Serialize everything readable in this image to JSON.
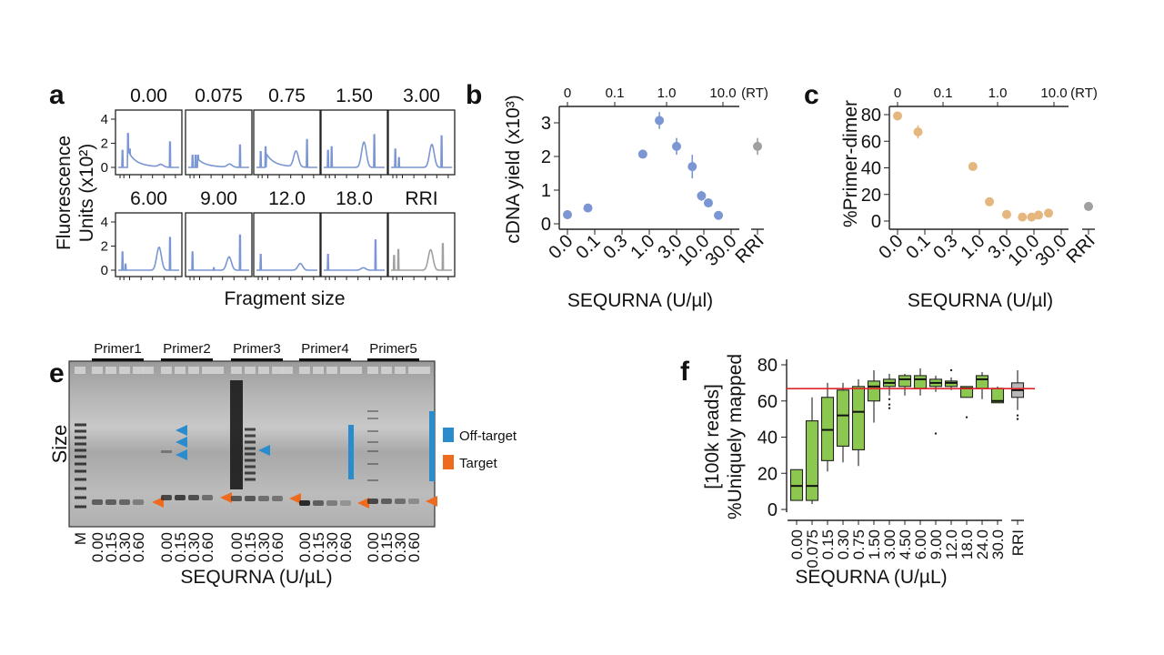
{
  "panels": {
    "a": "a",
    "b": "b",
    "c": "c",
    "e": "e",
    "f": "f"
  },
  "colors": {
    "blue_series": "#7b96d2",
    "orange_series": "#e5b77f",
    "rri_grey": "#a0a0a0",
    "box_green": "#8cc850",
    "ref_line_red": "#e0262b",
    "off_target": "#2a8ccc",
    "target": "#ee6a1e"
  },
  "chart_data": [
    {
      "id": "a",
      "type": "line",
      "ylabel_line1": "Fluorescence",
      "ylabel_line2": "Units (x10²)",
      "xlabel": "Fragment size",
      "yticks": [
        "0",
        "2",
        "4"
      ],
      "ylim": [
        0,
        4
      ],
      "panels": [
        {
          "title": "0.00",
          "color": "#7b96d2",
          "spikes": [
            [
              7,
              1.4
            ],
            [
              16,
              2.8
            ],
            [
              19,
              1.5
            ],
            [
              85,
              2.1
            ]
          ],
          "decay": 1.2,
          "hump": [
            70,
            0.2
          ]
        },
        {
          "title": "0.075",
          "color": "#7b96d2",
          "spikes": [
            [
              7,
              1.0
            ],
            [
              12,
              1.0
            ],
            [
              16,
              1.0
            ],
            [
              85,
              1.85
            ]
          ],
          "decay": 0.6,
          "hump": [
            68,
            0.25
          ]
        },
        {
          "title": "0.75",
          "color": "#7b96d2",
          "spikes": [
            [
              7,
              1.3
            ],
            [
              15,
              1.7
            ],
            [
              83,
              2.3
            ]
          ],
          "decay": 1.0,
          "hump": [
            65,
            1.3
          ]
        },
        {
          "title": "1.50",
          "color": "#7b96d2",
          "spikes": [
            [
              7,
              1.4
            ],
            [
              13,
              1.7
            ],
            [
              83,
              2.7
            ]
          ],
          "decay": 0,
          "hump": [
            66,
            2.1
          ]
        },
        {
          "title": "3.00",
          "color": "#7b96d2",
          "spikes": [
            [
              7,
              1.5
            ],
            [
              13,
              0.8
            ],
            [
              83,
              2.6
            ]
          ],
          "decay": 0,
          "hump": [
            67,
            1.9
          ]
        },
        {
          "title": "6.00",
          "color": "#7b96d2",
          "spikes": [
            [
              7,
              1.5
            ],
            [
              12,
              0.5
            ],
            [
              85,
              2.7
            ]
          ],
          "decay": 0,
          "hump": [
            67,
            1.9
          ]
        },
        {
          "title": "9.00",
          "color": "#7b96d2",
          "spikes": [
            [
              7,
              1.5
            ],
            [
              42,
              0.2
            ],
            [
              85,
              2.9
            ]
          ],
          "decay": 0,
          "hump": [
            67,
            1.1
          ]
        },
        {
          "title": "12.0",
          "color": "#7b96d2",
          "spikes": [
            [
              7,
              1.3
            ]
          ],
          "decay": 0,
          "hump": [
            72,
            0.55
          ]
        },
        {
          "title": "18.0",
          "color": "#7b96d2",
          "spikes": [
            [
              7,
              1.3
            ],
            [
              85,
              2.5
            ]
          ],
          "decay": 0,
          "hump": [
            65,
            0.2
          ]
        },
        {
          "title": "RRI",
          "color": "#a0a0a0",
          "spikes": [
            [
              5,
              1.2
            ],
            [
              12,
              1.7
            ],
            [
              85,
              2.2
            ]
          ],
          "decay": 0,
          "hump": [
            65,
            1.7
          ]
        }
      ]
    },
    {
      "id": "b",
      "type": "scatter",
      "ylabel": "cDNA yield (x10³)",
      "xlabel": "SEQURNA (U/µl)",
      "ylim": [
        0,
        3
      ],
      "yticks": [
        "0",
        "1",
        "2",
        "3"
      ],
      "xticks": [
        "0.0",
        "0.1",
        "0.3",
        "1.0",
        "3.0",
        "10.0",
        "30.0"
      ],
      "top_axis": {
        "ticks": [
          "0",
          "0.1",
          "1.0",
          "10.0"
        ],
        "unit": "(RT)"
      },
      "points": [
        {
          "x": 0.0,
          "y": 0.27,
          "err": 0
        },
        {
          "x": 0.075,
          "y": 0.47,
          "err": 0
        },
        {
          "x": 0.75,
          "y": 2.07,
          "err": 0
        },
        {
          "x": 1.5,
          "y": 3.07,
          "err": 0.25
        },
        {
          "x": 3.0,
          "y": 2.3,
          "err": 0.25
        },
        {
          "x": 6.0,
          "y": 1.7,
          "err": 0.35
        },
        {
          "x": 9.0,
          "y": 0.83,
          "err": 0.15
        },
        {
          "x": 12.0,
          "y": 0.62,
          "err": 0.1
        },
        {
          "x": 18.0,
          "y": 0.25,
          "err": 0
        }
      ],
      "control": {
        "label": "RRI",
        "y": 2.3,
        "err": 0.25
      }
    },
    {
      "id": "c",
      "type": "scatter",
      "ylabel": "%Primer-dimer",
      "xlabel": "SEQURNA (U/µl)",
      "ylim": [
        0,
        80
      ],
      "yticks": [
        "0",
        "20",
        "40",
        "60",
        "80"
      ],
      "xticks": [
        "0.0",
        "0.1",
        "0.3",
        "1.0",
        "3.0",
        "10.0",
        "30.0"
      ],
      "top_axis": {
        "ticks": [
          "0",
          "0.1",
          "1.0",
          "10.0"
        ],
        "unit": "(RT)"
      },
      "points": [
        {
          "x": 0.0,
          "y": 79,
          "err": 3
        },
        {
          "x": 0.075,
          "y": 67,
          "err": 5
        },
        {
          "x": 0.75,
          "y": 41,
          "err": 0
        },
        {
          "x": 1.5,
          "y": 14.5,
          "err": 0
        },
        {
          "x": 3.0,
          "y": 5,
          "err": 0
        },
        {
          "x": 6.0,
          "y": 3,
          "err": 0
        },
        {
          "x": 9.0,
          "y": 3,
          "err": 0
        },
        {
          "x": 12.0,
          "y": 4.5,
          "err": 0
        },
        {
          "x": 18.0,
          "y": 6,
          "err": 0
        }
      ],
      "control": {
        "label": "RRI",
        "y": 11,
        "err": 0
      }
    },
    {
      "id": "f",
      "type": "box",
      "ylabel_line1": "[100k reads]",
      "ylabel_line2": "%Uniquely mapped",
      "xlabel": "SEQURNA (U/µL)",
      "ylim": [
        0,
        80
      ],
      "yticks": [
        "0",
        "20",
        "40",
        "60",
        "80"
      ],
      "reference_line": 66.8,
      "boxes": [
        {
          "label": "0.00",
          "q1": 5,
          "median": 13,
          "q3": 22,
          "lo": 5,
          "hi": 22,
          "outliers": []
        },
        {
          "label": "0.075",
          "q1": 5,
          "median": 13,
          "q3": 49,
          "lo": 3,
          "hi": 62,
          "outliers": []
        },
        {
          "label": "0.15",
          "q1": 27,
          "median": 44,
          "q3": 62,
          "lo": 21,
          "hi": 70,
          "outliers": []
        },
        {
          "label": "0.30",
          "q1": 35,
          "median": 52,
          "q3": 66,
          "lo": 26,
          "hi": 70,
          "outliers": []
        },
        {
          "label": "0.75",
          "q1": 33,
          "median": 54,
          "q3": 68,
          "lo": 24,
          "hi": 72,
          "outliers": []
        },
        {
          "label": "1.50",
          "q1": 60,
          "median": 68,
          "q3": 71,
          "lo": 48,
          "hi": 77,
          "outliers": []
        },
        {
          "label": "3.00",
          "q1": 68,
          "median": 70,
          "q3": 72,
          "lo": 63,
          "hi": 75,
          "outliers": [
            56,
            58,
            61
          ]
        },
        {
          "label": "4.50",
          "q1": 68,
          "median": 72,
          "q3": 74,
          "lo": 63,
          "hi": 75,
          "outliers": []
        },
        {
          "label": "6.00",
          "q1": 67,
          "median": 72,
          "q3": 74,
          "lo": 63,
          "hi": 78,
          "outliers": []
        },
        {
          "label": "9.00",
          "q1": 68,
          "median": 70,
          "q3": 72,
          "lo": 65,
          "hi": 74,
          "outliers": [
            42
          ]
        },
        {
          "label": "12.0",
          "q1": 68,
          "median": 70,
          "q3": 71,
          "lo": 66,
          "hi": 73,
          "outliers": [
            77
          ]
        },
        {
          "label": "18.0",
          "q1": 62,
          "median": 67,
          "q3": 68,
          "lo": 62,
          "hi": 68,
          "outliers": [
            51
          ]
        },
        {
          "label": "24.0",
          "q1": 67,
          "median": 72,
          "q3": 74,
          "lo": 61,
          "hi": 76,
          "outliers": []
        },
        {
          "label": "30.0",
          "q1": 59,
          "median": 60,
          "q3": 67,
          "lo": 59,
          "hi": 68,
          "outliers": []
        }
      ],
      "control": {
        "label": "RRI",
        "q1": 62,
        "median": 66,
        "q3": 70,
        "lo": 55,
        "hi": 77,
        "outliers": [
          50,
          52
        ]
      }
    }
  ],
  "gel": {
    "ylabel": "Size",
    "xlabel": "SEQURNA (U/µL)",
    "marker_label": "M",
    "primers": [
      "Primer1",
      "Primer2",
      "Primer3",
      "Primer4",
      "Primer5"
    ],
    "lane_labels": [
      "0.00",
      "0.15",
      "0.30",
      "0.60"
    ],
    "legend": [
      {
        "label": "Off-target",
        "color": "#2a8ccc"
      },
      {
        "label": "Target",
        "color": "#ee6a1e"
      }
    ]
  }
}
